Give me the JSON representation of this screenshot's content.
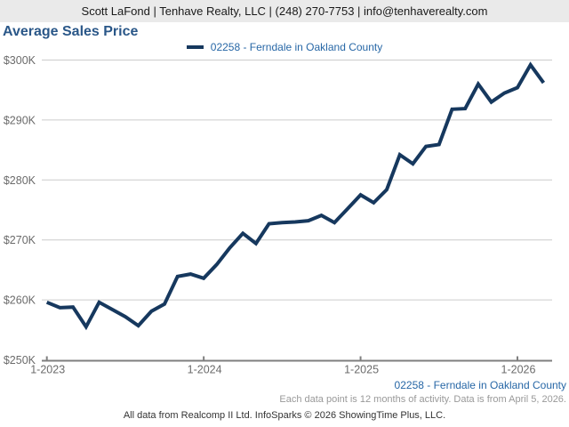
{
  "header": {
    "contact_line": "Scott LaFond | Tenhave Realty, LLC | (248) 270-7753 | info@tenhaverealty.com"
  },
  "title": "Average Sales Price",
  "legend": {
    "series_label": "02258 - Ferndale in Oakland County"
  },
  "footer": {
    "series_label": "02258 - Ferndale in Oakland County",
    "data_note": "Each data point is 12 months of activity. Data is from April 5, 2026.",
    "attribution": "All data from Realcomp II Ltd. InfoSparks © 2026 ShowingTime Plus, LLC."
  },
  "colors": {
    "header_bg": "#EAEAEA",
    "header_text": "#1a1a1a",
    "title_blue": "#2A5788",
    "series_line": "#16385E",
    "link_blue": "#2767A6",
    "grid": "#CCCCCC",
    "axis": "#7F7F7F",
    "tick_label": "#6B6B6B",
    "note_gray": "#999999",
    "attribution_text": "#333333"
  },
  "chart_data": {
    "type": "line",
    "title": "Average Sales Price",
    "x": [
      "1-2023",
      "2-2023",
      "3-2023",
      "4-2023",
      "5-2023",
      "6-2023",
      "7-2023",
      "8-2023",
      "9-2023",
      "10-2023",
      "11-2023",
      "12-2023",
      "1-2024",
      "2-2024",
      "3-2024",
      "4-2024",
      "5-2024",
      "6-2024",
      "7-2024",
      "8-2024",
      "9-2024",
      "10-2024",
      "11-2024",
      "12-2024",
      "1-2025",
      "2-2025",
      "3-2025",
      "4-2025",
      "5-2025",
      "6-2025",
      "7-2025",
      "8-2025",
      "9-2025",
      "10-2025",
      "11-2025",
      "12-2025",
      "1-2026",
      "2-2026",
      "3-2026"
    ],
    "series": [
      {
        "name": "02258 - Ferndale in Oakland County",
        "values": [
          259600,
          258700,
          258800,
          255500,
          259600,
          258400,
          257200,
          255700,
          258100,
          259300,
          263900,
          264300,
          263600,
          265900,
          268700,
          271100,
          269400,
          272700,
          272900,
          273000,
          273200,
          274100,
          272900,
          275200,
          277500,
          276200,
          278400,
          284200,
          282700,
          285600,
          285900,
          291800,
          291900,
          296000,
          293000,
          294500,
          295400,
          299200,
          296200
        ]
      }
    ],
    "ylabel": "",
    "xlabel": "",
    "ylim": [
      250000,
      300000
    ],
    "y_ticks": [
      250000,
      260000,
      270000,
      280000,
      290000,
      300000
    ],
    "y_tick_labels": [
      "$250K",
      "$260K",
      "$270K",
      "$280K",
      "$290K",
      "$300K"
    ],
    "x_tick_indices": [
      0,
      12,
      24,
      36
    ],
    "x_tick_labels": [
      "1-2023",
      "1-2024",
      "1-2025",
      "1-2026"
    ],
    "grid": true,
    "legend_position": "top-center"
  }
}
